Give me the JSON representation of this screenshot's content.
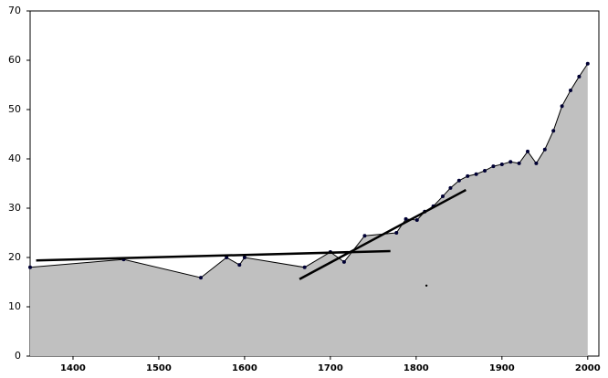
{
  "chart_data": {
    "type": "area",
    "x": [
      1350,
      1459,
      1549,
      1579,
      1594,
      1600,
      1670,
      1700,
      1716,
      1740,
      1777,
      1788,
      1801,
      1810,
      1820,
      1831,
      1840,
      1850,
      1860,
      1870,
      1880,
      1890,
      1900,
      1910,
      1920,
      1930,
      1940,
      1950,
      1960,
      1970,
      1980,
      1990,
      2000
    ],
    "series": [
      {
        "color": "#c0c0c0",
        "values": [
          18.0,
          19.6,
          15.9,
          20.0,
          18.5,
          20.0,
          18.0,
          21.1,
          19.1,
          24.4,
          25.0,
          27.8,
          27.6,
          29.3,
          30.4,
          32.4,
          34.1,
          35.6,
          36.5,
          36.9,
          37.6,
          38.5,
          38.9,
          39.4,
          39.1,
          41.5,
          39.1,
          41.9,
          45.7,
          50.7,
          53.9,
          56.7,
          59.3
        ]
      }
    ],
    "trendlines": [
      {
        "x": [
          1357,
          1770
        ],
        "values": [
          19.4,
          21.3
        ]
      },
      {
        "x": [
          1664,
          1858
        ],
        "values": [
          15.6,
          33.7
        ]
      }
    ],
    "points": {
      "x": [
        1812
      ],
      "values": [
        14.3
      ]
    },
    "xlim": [
      1350,
      2013
    ],
    "ylim": [
      0,
      70
    ],
    "xticks": [
      1400,
      1500,
      1600,
      1700,
      1800,
      1900,
      2000
    ],
    "yticks": [
      0,
      10,
      20,
      30,
      40,
      50,
      60,
      70
    ]
  }
}
